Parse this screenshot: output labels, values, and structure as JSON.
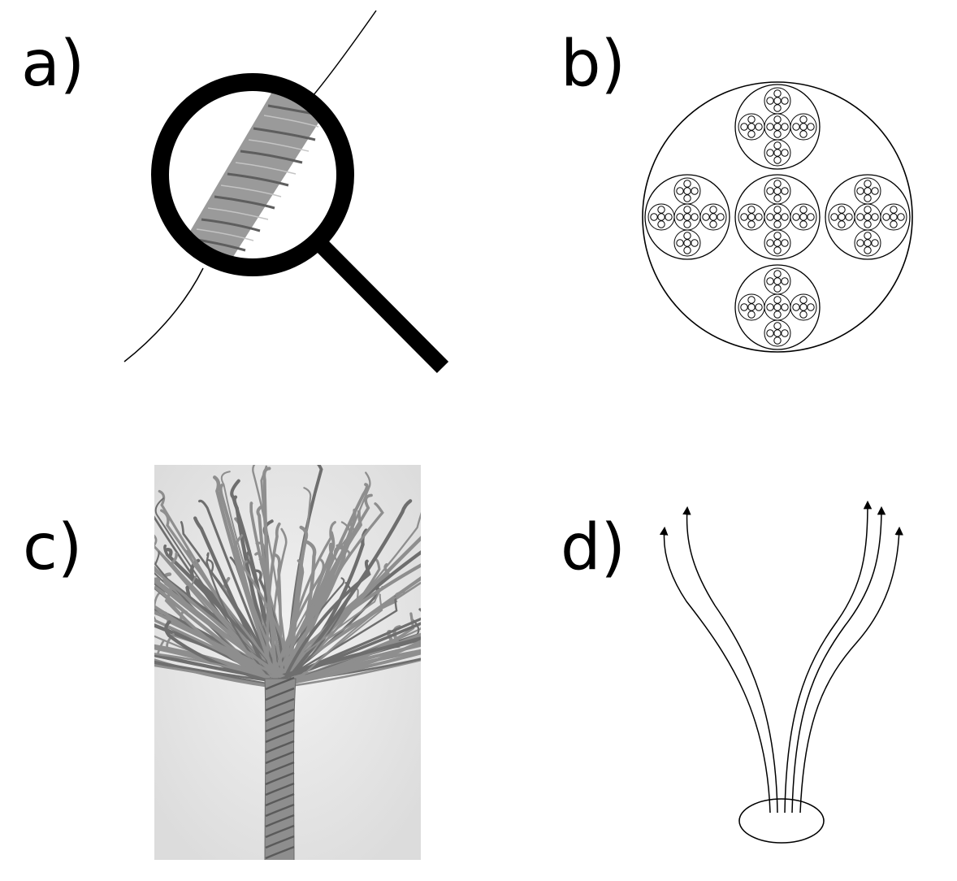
{
  "panels": {
    "a": {
      "label": "a)"
    },
    "b": {
      "label": "b)"
    },
    "c": {
      "label": "c)"
    },
    "d": {
      "label": "d)"
    }
  },
  "colors": {
    "ink": "#000000",
    "rope": "#8e8e8e",
    "rope_dark": "#5e5e5e",
    "photo_bg": "#e4e4e4"
  }
}
